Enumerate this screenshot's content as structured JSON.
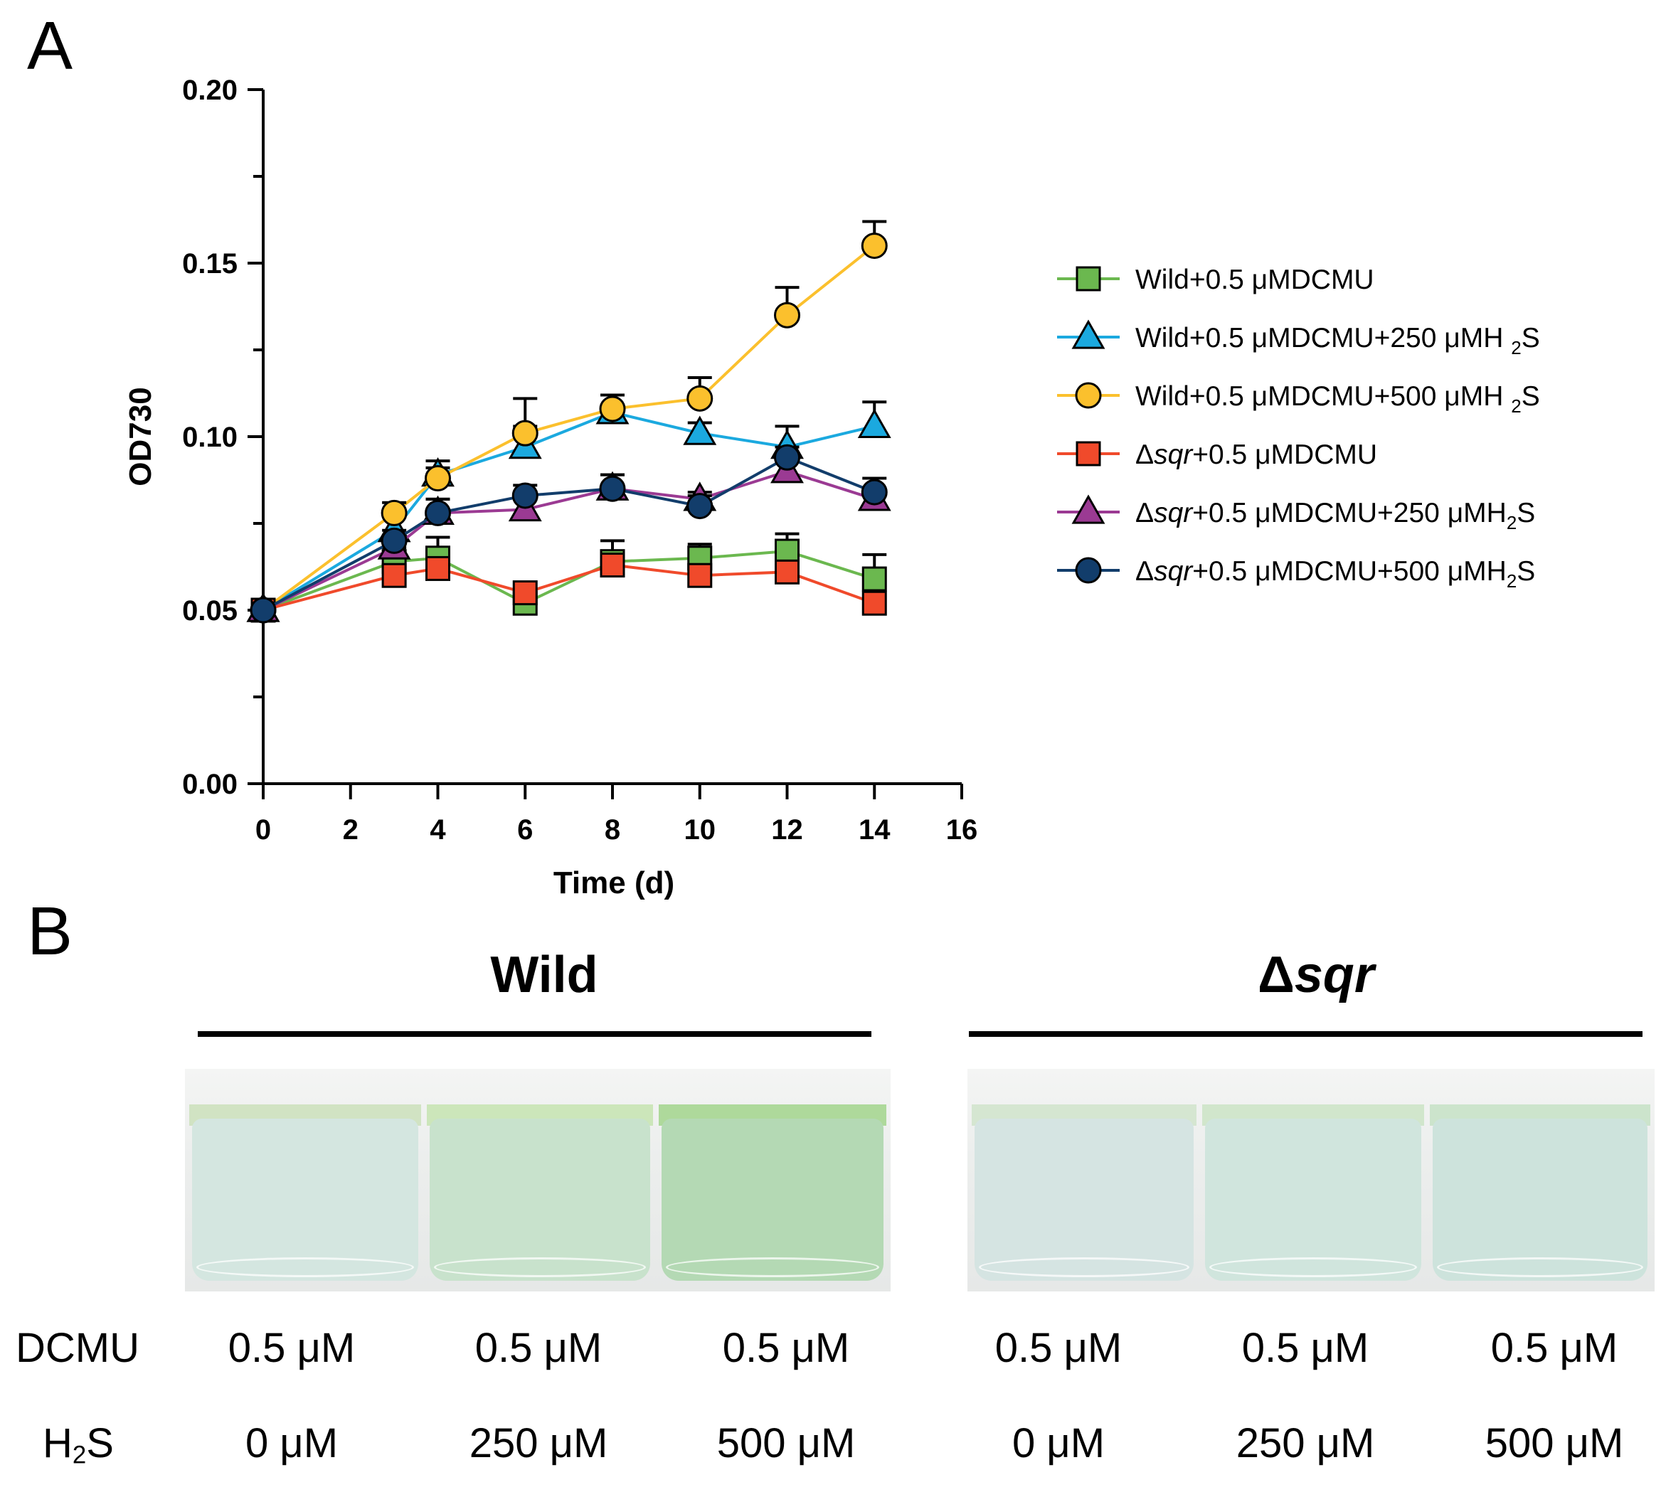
{
  "panel_a_label": "A",
  "panel_b_label": "B",
  "chart_data": {
    "type": "line",
    "xlabel": "Time (d)",
    "ylabel": "OD730",
    "xlim": [
      0,
      16
    ],
    "ylim": [
      0,
      0.2
    ],
    "x_ticks": [
      "0",
      "2",
      "4",
      "6",
      "8",
      "10",
      "12",
      "14",
      "16"
    ],
    "y_ticks": [
      "0.00",
      "0.05",
      "0.10",
      "0.15",
      "0.20"
    ],
    "legend_position": "right",
    "x": [
      0,
      3,
      4,
      6,
      8,
      10,
      12,
      14
    ],
    "series": [
      {
        "name": "Wild+0.5 μMDCMU",
        "legend_main": "Wild+0.5 μMDCMU",
        "color": "#6bb84f",
        "marker": "square",
        "values": [
          0.05,
          0.064,
          0.065,
          0.052,
          0.064,
          0.065,
          0.067,
          0.059
        ],
        "errors": [
          0.0,
          0.004,
          0.006,
          0.003,
          0.006,
          0.004,
          0.005,
          0.007
        ]
      },
      {
        "name": "Wild+0.5 μMDCMU+250 μMH 2S",
        "legend_main": "Wild+0.5 μMDCMU+250 μMH ",
        "legend_sub": "2",
        "legend_after": "S",
        "color": "#1ba9df",
        "marker": "triangle",
        "values": [
          0.05,
          0.073,
          0.089,
          0.097,
          0.107,
          0.101,
          0.097,
          0.103
        ],
        "errors": [
          0.0,
          0.004,
          0.004,
          0.006,
          0.005,
          0.003,
          0.006,
          0.007
        ]
      },
      {
        "name": "Wild+0.5 μMDCMU+500 μMH 2S",
        "legend_main": "Wild+0.5 μMDCMU+500 μMH ",
        "legend_sub": "2",
        "legend_after": "S",
        "color": "#fbc02d",
        "marker": "circle",
        "values": [
          0.05,
          0.078,
          0.088,
          0.101,
          0.108,
          0.111,
          0.135,
          0.155
        ],
        "errors": [
          0.0,
          0.003,
          0.003,
          0.01,
          0.004,
          0.006,
          0.008,
          0.007
        ]
      },
      {
        "name": "Δsqr+0.5 μMDCMU",
        "legend_prefix": "Δ",
        "legend_italic": "sqr",
        "legend_main": "+0.5 μMDCMU",
        "color": "#f04a2b",
        "marker": "square",
        "values": [
          0.05,
          0.06,
          0.062,
          0.055,
          0.063,
          0.06,
          0.061,
          0.052
        ],
        "errors": [
          0.0,
          0.002,
          0.003,
          0.002,
          0.002,
          0.002,
          0.003,
          0.003
        ]
      },
      {
        "name": "Δsqr+0.5 μMDCMU+250 μMH2S",
        "legend_prefix": "Δ",
        "legend_italic": "sqr",
        "legend_main": "+0.5 μMDCMU+250 μMH",
        "legend_sub": "2",
        "legend_after": "S",
        "color": "#9b3a93",
        "marker": "triangle",
        "values": [
          0.05,
          0.068,
          0.078,
          0.079,
          0.085,
          0.082,
          0.09,
          0.082
        ],
        "errors": [
          0.0,
          0.003,
          0.004,
          0.003,
          0.004,
          0.002,
          0.003,
          0.003
        ]
      },
      {
        "name": "Δsqr+0.5 μMDCMU+500 μMH2S",
        "legend_prefix": "Δ",
        "legend_italic": "sqr",
        "legend_main": "+0.5 μMDCMU+500 μMH",
        "legend_sub": "2",
        "legend_after": "S",
        "color": "#123d6b",
        "marker": "circle",
        "values": [
          0.05,
          0.07,
          0.078,
          0.083,
          0.085,
          0.08,
          0.094,
          0.084
        ],
        "errors": [
          0.0,
          0.003,
          0.004,
          0.003,
          0.004,
          0.003,
          0.003,
          0.004
        ]
      }
    ]
  },
  "panel_b": {
    "wild_title": "Wild",
    "sqr_prefix": "Δ",
    "sqr_italic": "sqr",
    "dcmu_label": "DCMU",
    "h2s_prefix": "H",
    "h2s_sub": "2",
    "h2s_suffix": "S",
    "conditions": [
      {
        "dcmu": "0.5 μM",
        "h2s": "0 μM",
        "liquid": "#d4e6e0"
      },
      {
        "dcmu": "0.5 μM",
        "h2s": "250 μM",
        "liquid": "#c8e2cc"
      },
      {
        "dcmu": "0.5 μM",
        "h2s": "500 μM",
        "liquid": "#b4d9b4"
      },
      {
        "dcmu": "0.5 μM",
        "h2s": "0 μM",
        "liquid": "#d5e4e2"
      },
      {
        "dcmu": "0.5 μM",
        "h2s": "250 μM",
        "liquid": "#d0e5dd"
      },
      {
        "dcmu": "0.5 μM",
        "h2s": "500 μM",
        "liquid": "#cde3dc"
      }
    ]
  }
}
